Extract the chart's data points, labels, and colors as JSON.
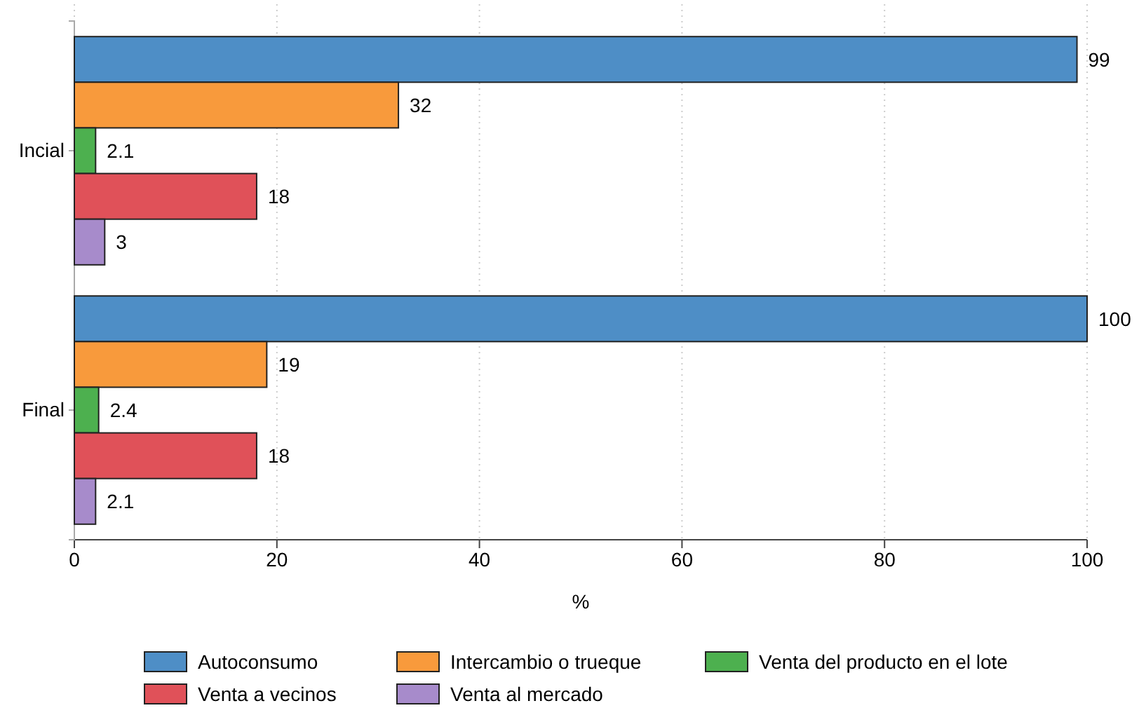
{
  "chart_data": {
    "type": "bar",
    "orientation": "horizontal",
    "categories": [
      "Incial",
      "Final"
    ],
    "series": [
      {
        "name": "Autoconsumo",
        "color": "#4e8ec6",
        "values": [
          99,
          100
        ]
      },
      {
        "name": "Intercambio o trueque",
        "color": "#f89a3c",
        "values": [
          32,
          19
        ]
      },
      {
        "name": "Venta del producto en el lote",
        "color": "#4db04f",
        "values": [
          2.1,
          2.4
        ]
      },
      {
        "name": "Venta a vecinos",
        "color": "#e05159",
        "values": [
          18,
          18
        ]
      },
      {
        "name": "Venta al mercado",
        "color": "#a78bcb",
        "values": [
          3,
          2.1
        ]
      }
    ],
    "xlabel": "%",
    "xlim": [
      0,
      100
    ],
    "xticks": [
      0,
      20,
      40,
      60,
      80,
      100
    ],
    "grid": "x",
    "legend": "bottom",
    "data_labels": true
  }
}
